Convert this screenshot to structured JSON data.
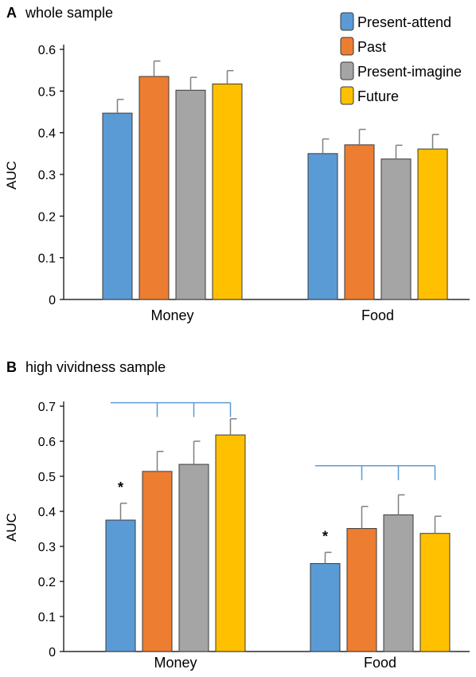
{
  "chart_data": [
    {
      "type": "bar",
      "panel_letter": "A",
      "title": "whole sample",
      "ylabel": "AUC",
      "ylim": [
        0,
        0.6
      ],
      "yticks": [
        "0",
        "0.1",
        "0.2",
        "0.3",
        "0.4",
        "0.5",
        "0.6"
      ],
      "categories": [
        "Money",
        "Food"
      ],
      "series": [
        {
          "name": "Present-attend",
          "color": "#5b9bd5",
          "values": [
            0.447,
            0.35
          ],
          "errors": [
            0.033,
            0.035
          ]
        },
        {
          "name": "Past",
          "color": "#ed7d31",
          "values": [
            0.535,
            0.371
          ],
          "errors": [
            0.037,
            0.037
          ]
        },
        {
          "name": "Present-imagine",
          "color": "#a5a5a5",
          "values": [
            0.502,
            0.337
          ],
          "errors": [
            0.031,
            0.033
          ]
        },
        {
          "name": "Future",
          "color": "#ffc000",
          "values": [
            0.517,
            0.361
          ],
          "errors": [
            0.032,
            0.035
          ]
        }
      ],
      "legend": "top-right",
      "grid": false
    },
    {
      "type": "bar",
      "panel_letter": "B",
      "title": "high vividness sample",
      "ylabel": "AUC",
      "ylim": [
        0,
        0.7
      ],
      "yticks": [
        "0",
        "0.1",
        "0.2",
        "0.3",
        "0.4",
        "0.5",
        "0.6",
        "0.7"
      ],
      "categories": [
        "Money",
        "Food"
      ],
      "series": [
        {
          "name": "Present-attend",
          "color": "#5b9bd5",
          "values": [
            0.375,
            0.251
          ],
          "errors": [
            0.048,
            0.032
          ]
        },
        {
          "name": "Past",
          "color": "#ed7d31",
          "values": [
            0.514,
            0.351
          ],
          "errors": [
            0.057,
            0.063
          ]
        },
        {
          "name": "Present-imagine",
          "color": "#a5a5a5",
          "values": [
            0.534,
            0.39
          ],
          "errors": [
            0.066,
            0.057
          ]
        },
        {
          "name": "Future",
          "color": "#ffc000",
          "values": [
            0.618,
            0.337
          ],
          "errors": [
            0.046,
            0.049
          ]
        }
      ],
      "annotations": [
        {
          "text": "*",
          "category": "Money",
          "series": "Present-attend"
        },
        {
          "text": "*",
          "category": "Food",
          "series": "Present-attend"
        }
      ],
      "significance_brackets": [
        {
          "category": "Money",
          "from_series": "Present-attend",
          "to_series": [
            "Past",
            "Present-imagine",
            "Future"
          ],
          "level": 0.71
        },
        {
          "category": "Food",
          "from_series": "Present-attend",
          "to_series": [
            "Past",
            "Present-imagine",
            "Future"
          ],
          "level": 0.53
        }
      ],
      "grid": false
    }
  ]
}
